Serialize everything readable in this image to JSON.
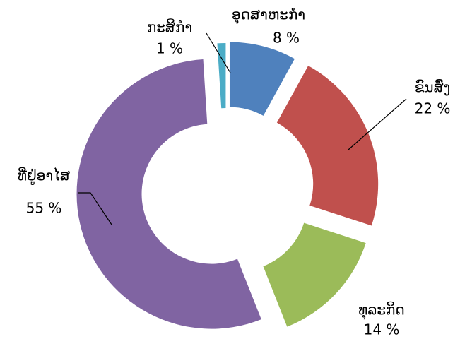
{
  "chart_data": {
    "type": "donut",
    "categories": [
      "ອຸດສາຫະກຳ",
      "ຂົນສົ່ງ",
      "ທຸລະກິດ",
      "ທີ່ຢູ່ອາໄສ",
      "ກະສິກຳ"
    ],
    "values": [
      8,
      22,
      14,
      55,
      1
    ],
    "value_labels": [
      "8 %",
      "22 %",
      "14 %",
      "55 %",
      "1 %"
    ],
    "colors": [
      "#4f81bd",
      "#c0504d",
      "#9bbb59",
      "#8064a2",
      "#4bacc6"
    ]
  }
}
